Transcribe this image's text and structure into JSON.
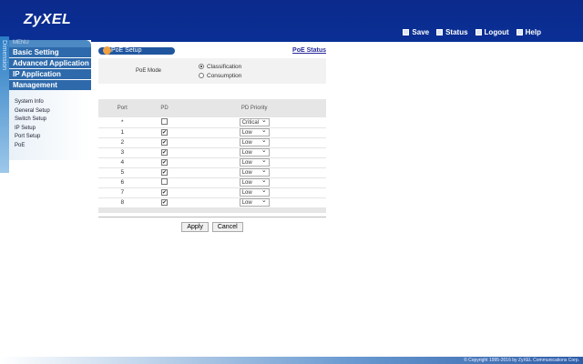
{
  "header": {
    "logo": "ZyXEL",
    "links": [
      {
        "label": "Save",
        "icon": "save-icon"
      },
      {
        "label": "Status",
        "icon": "status-icon"
      },
      {
        "label": "Logout",
        "icon": "logout-icon"
      },
      {
        "label": "Help",
        "icon": "help-icon"
      }
    ]
  },
  "strip_text": "Dimension",
  "sidebar": {
    "menu_label": "MENU",
    "items": [
      "Basic Setting",
      "Advanced Application",
      "IP Application",
      "Management"
    ],
    "sub": [
      "System Info",
      "General Setup",
      "Switch Setup",
      "IP Setup",
      "Port Setup",
      "PoE"
    ]
  },
  "main": {
    "title": "PoE Setup",
    "status_link": "PoE Status",
    "mode_label": "PoE Mode",
    "modes": [
      {
        "label": "Classification",
        "selected": true
      },
      {
        "label": "Consumption",
        "selected": false
      }
    ],
    "columns": [
      "Port",
      "PD",
      "PD Priority"
    ],
    "rows": [
      {
        "port": "*",
        "pd": false,
        "priority": "Critical"
      },
      {
        "port": "1",
        "pd": true,
        "priority": "Low"
      },
      {
        "port": "2",
        "pd": true,
        "priority": "Low"
      },
      {
        "port": "3",
        "pd": true,
        "priority": "Low"
      },
      {
        "port": "4",
        "pd": true,
        "priority": "Low"
      },
      {
        "port": "5",
        "pd": true,
        "priority": "Low"
      },
      {
        "port": "6",
        "pd": false,
        "priority": "Low"
      },
      {
        "port": "7",
        "pd": true,
        "priority": "Low"
      },
      {
        "port": "8",
        "pd": true,
        "priority": "Low"
      }
    ],
    "apply": "Apply",
    "cancel": "Cancel"
  },
  "footer": "© Copyright 1995-2016 by ZyXEL Communications Corp."
}
